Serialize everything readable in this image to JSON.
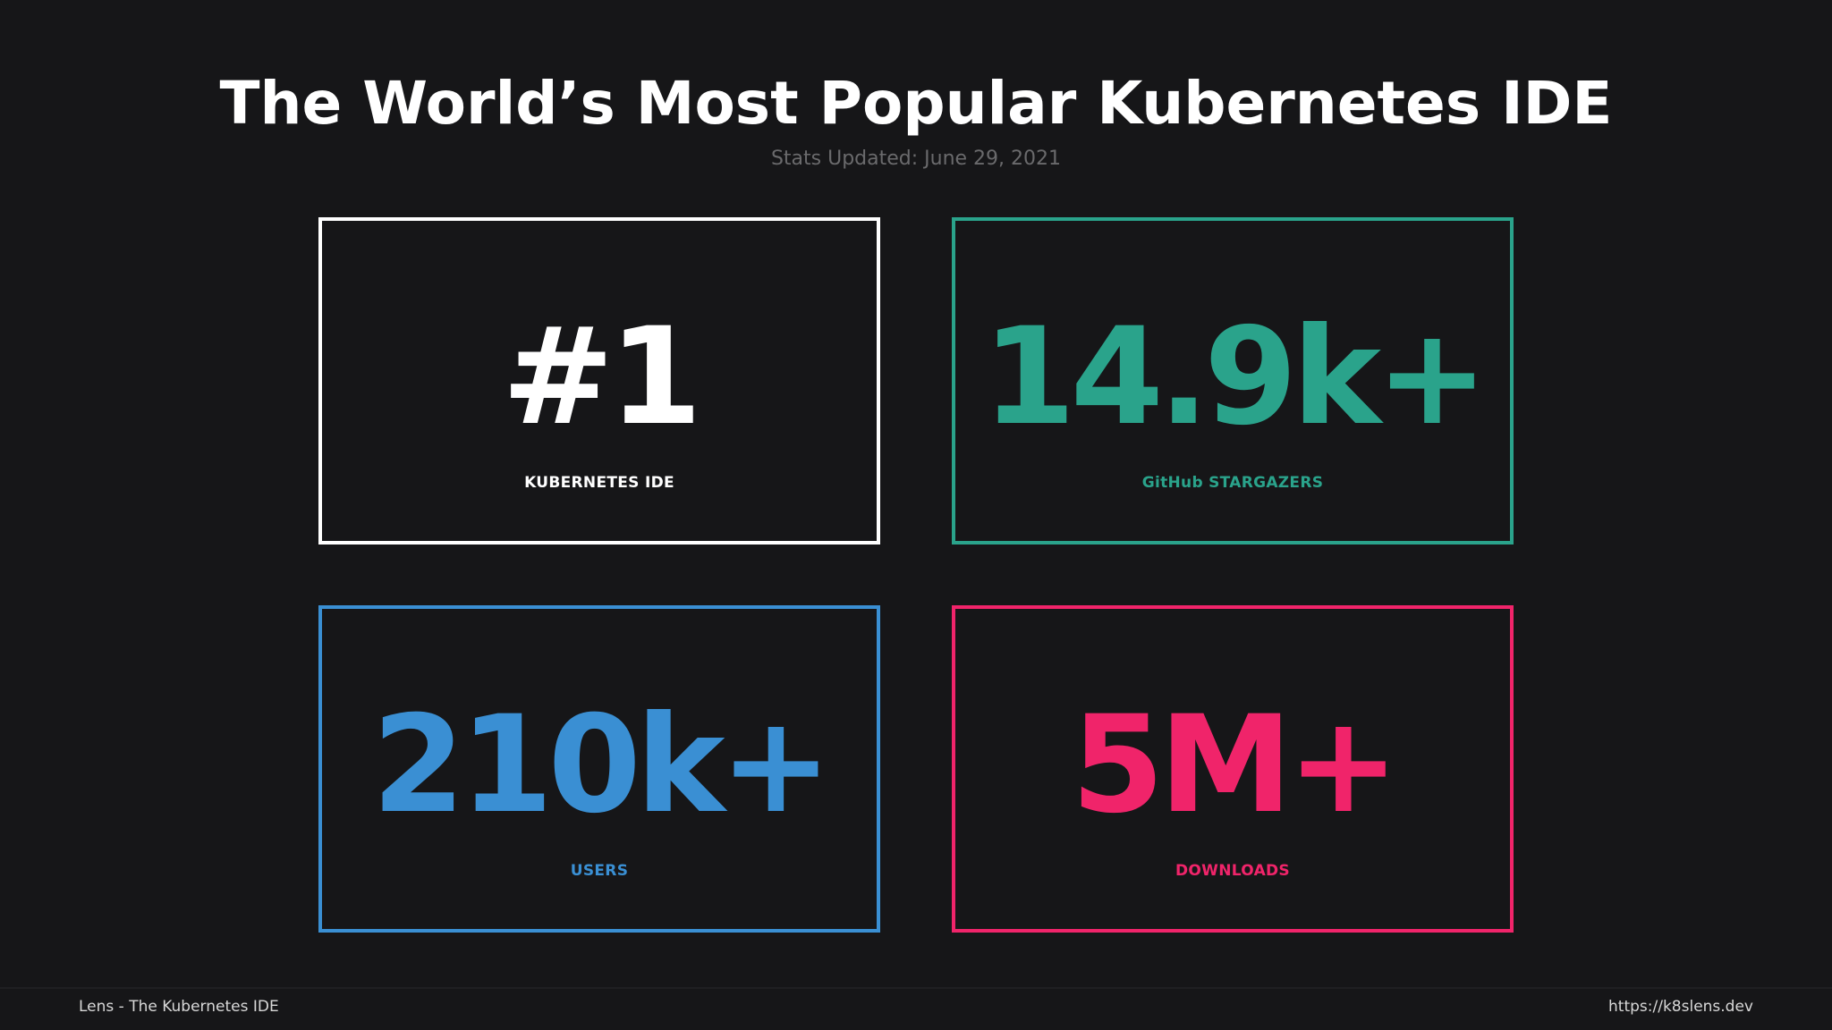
{
  "header": {
    "title": "The World’s Most Popular Kubernetes IDE",
    "subtitle": "Stats Updated: June 29, 2021"
  },
  "stats": [
    {
      "value": "#1",
      "label": "KUBERNETES IDE",
      "color": "#ffffff"
    },
    {
      "value": "14.9k+",
      "label": "GitHub STARGAZERS",
      "color": "#2aa38b"
    },
    {
      "value": "210k+",
      "label": "USERS",
      "color": "#3a8fd3"
    },
    {
      "value": "5M+",
      "label": "DOWNLOADS",
      "color": "#f0246a"
    }
  ],
  "footer": {
    "left_text": "Lens - The Kubernetes IDE",
    "right_text": "https://k8slens.dev"
  },
  "colors": {
    "background": "#161618",
    "subtitle": "#6a6a6c"
  }
}
